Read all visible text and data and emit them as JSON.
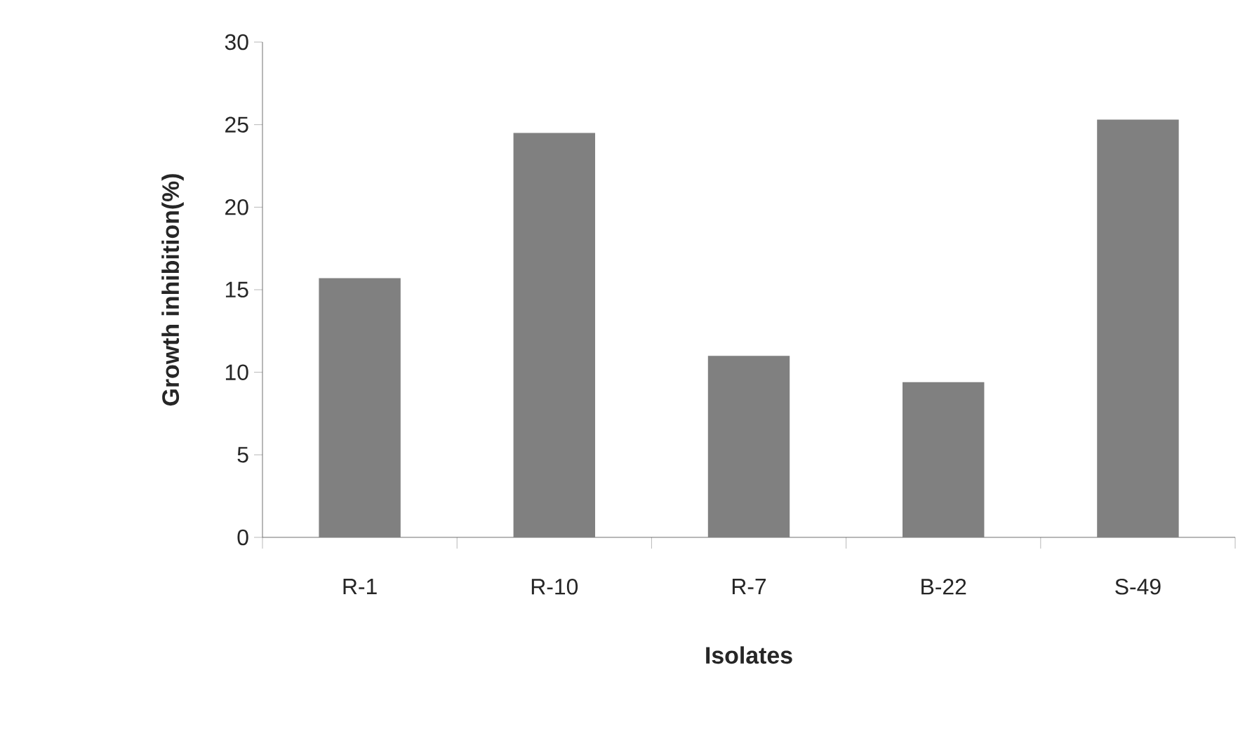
{
  "chart_data": {
    "type": "bar",
    "xlabel": "Isolates",
    "ylabel": "Growth inhibition(%)",
    "categories": [
      "R-1",
      "R-10",
      "R-7",
      "B-22",
      "S-49"
    ],
    "values": [
      15.7,
      24.5,
      11.0,
      9.4,
      25.3
    ],
    "color": "#808080",
    "ylim": [
      0,
      30
    ],
    "yticks": [
      0,
      5,
      10,
      15,
      20,
      25,
      30
    ],
    "grid": false
  }
}
